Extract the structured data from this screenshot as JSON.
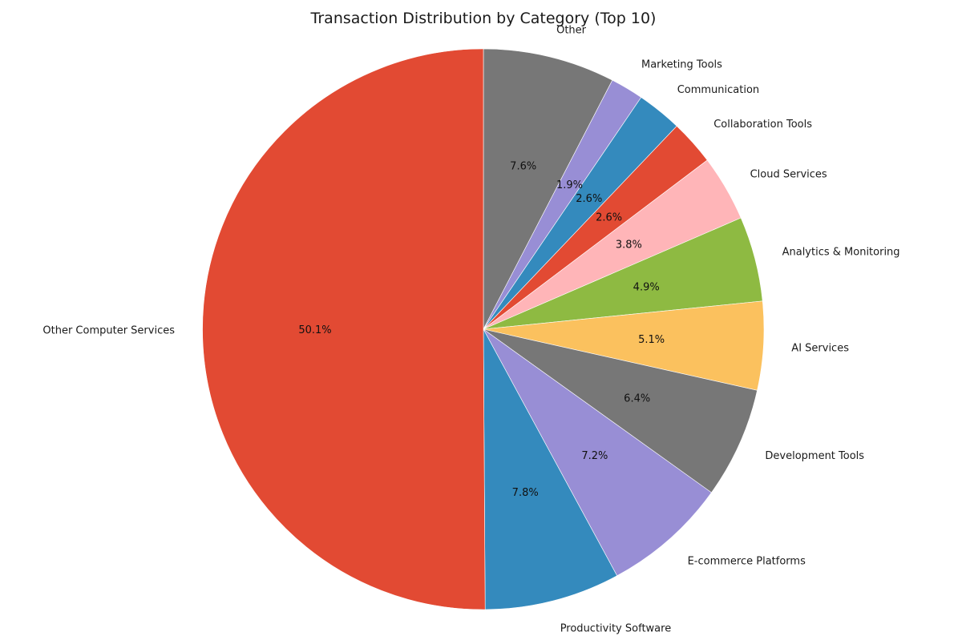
{
  "chart_data": {
    "type": "pie",
    "title": "Transaction Distribution by Category (Top 10)",
    "start_angle_deg": 90,
    "direction": "clockwise",
    "slices": [
      {
        "label": "Other",
        "value": 7.6,
        "pct_label": "7.6%",
        "color": "#777777"
      },
      {
        "label": "Marketing Tools",
        "value": 1.9,
        "pct_label": "1.9%",
        "color": "#988ED5"
      },
      {
        "label": "Communication",
        "value": 2.6,
        "pct_label": "2.6%",
        "color": "#348ABD"
      },
      {
        "label": "Collaboration Tools",
        "value": 2.6,
        "pct_label": "2.6%",
        "color": "#E24A33"
      },
      {
        "label": "Cloud Services",
        "value": 3.8,
        "pct_label": "3.8%",
        "color": "#FFB5B8"
      },
      {
        "label": "Analytics & Monitoring",
        "value": 4.9,
        "pct_label": "4.9%",
        "color": "#8EBA42"
      },
      {
        "label": "AI Services",
        "value": 5.1,
        "pct_label": "5.1%",
        "color": "#FBC15E"
      },
      {
        "label": "Development Tools",
        "value": 6.4,
        "pct_label": "6.4%",
        "color": "#777777"
      },
      {
        "label": "E-commerce Platforms",
        "value": 7.2,
        "pct_label": "7.2%",
        "color": "#988ED5"
      },
      {
        "label": "Productivity Software",
        "value": 7.8,
        "pct_label": "7.8%",
        "color": "#348ABD"
      },
      {
        "label": "Other Computer Services",
        "value": 50.1,
        "pct_label": "50.1%",
        "color": "#E24A33"
      }
    ]
  }
}
